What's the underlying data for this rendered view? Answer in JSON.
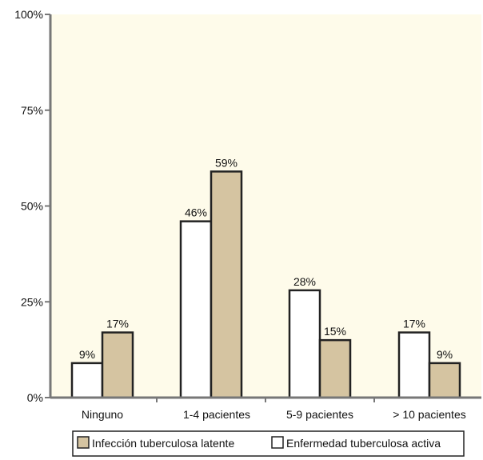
{
  "chart_data": {
    "type": "bar",
    "title": "",
    "xlabel": "",
    "ylabel": "",
    "categories": [
      "Ninguno",
      "1-4 pacientes",
      "5-9 pacientes",
      "> 10 pacientes"
    ],
    "series": [
      {
        "name": "Enfermedad tuberculosa activa",
        "values": [
          9,
          46,
          28,
          17
        ],
        "color": "#ffffff"
      },
      {
        "name": "Infección tuberculosa latente",
        "values": [
          17,
          59,
          15,
          9
        ],
        "color": "#d5c4a1"
      }
    ],
    "data_labels": [
      [
        "9%",
        "46%",
        "28%",
        "17%"
      ],
      [
        "17%",
        "59%",
        "15%",
        "9%"
      ]
    ],
    "ylim": [
      0,
      100
    ],
    "yticks": [
      0,
      25,
      50,
      75,
      100
    ],
    "ytick_labels": [
      "0%",
      "25%",
      "50%",
      "75%",
      "100%"
    ],
    "legend_position": "bottom",
    "legend_order": [
      1,
      0
    ],
    "plot_background": "#fefbea",
    "bar_stroke": "#222222",
    "grid": false
  }
}
